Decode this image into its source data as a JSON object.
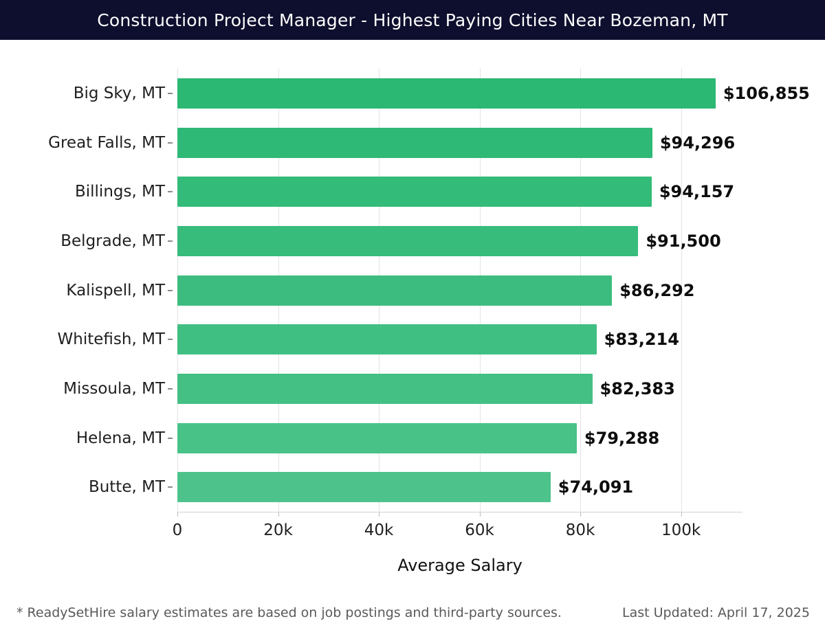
{
  "header": {
    "title": "Construction Project Manager - Highest Paying Cities Near Bozeman, MT",
    "bg_color": "#0e0e2e",
    "text_color": "#fdfdfd"
  },
  "chart_data": {
    "type": "bar",
    "orientation": "horizontal",
    "title": "Construction Project Manager - Highest Paying Cities Near Bozeman, MT",
    "categories": [
      "Big Sky, MT",
      "Great Falls, MT",
      "Billings, MT",
      "Belgrade, MT",
      "Kalispell, MT",
      "Whitefish, MT",
      "Missoula, MT",
      "Helena, MT",
      "Butte, MT"
    ],
    "values": [
      106855,
      94296,
      94157,
      91500,
      86292,
      83214,
      82383,
      79288,
      74091
    ],
    "value_labels": [
      "$106,855",
      "$94,296",
      "$94,157",
      "$91,500",
      "$86,292",
      "$83,214",
      "$82,383",
      "$79,288",
      "$74,091"
    ],
    "xlabel": "Average Salary",
    "ylabel": "",
    "xlim": [
      0,
      112200
    ],
    "x_ticks": [
      {
        "value": 0,
        "label": "0"
      },
      {
        "value": 20000,
        "label": "20k"
      },
      {
        "value": 40000,
        "label": "40k"
      },
      {
        "value": 60000,
        "label": "60k"
      },
      {
        "value": 80000,
        "label": "80k"
      },
      {
        "value": 100000,
        "label": "100k"
      }
    ],
    "grid": "vertical",
    "legend": "none",
    "bar_colors": [
      "#2ab873",
      "#2eb976",
      "#33bb79",
      "#37bc7c",
      "#3cbd7f",
      "#40bf82",
      "#44c085",
      "#49c288",
      "#4dc38b"
    ],
    "gridline_color": "#e3e3e3",
    "axis_line_color": "#d2d2d2"
  },
  "footer": {
    "note": "* ReadySetHire salary estimates are based on job postings and third-party sources.",
    "last_updated": "Last Updated: April 17, 2025"
  }
}
